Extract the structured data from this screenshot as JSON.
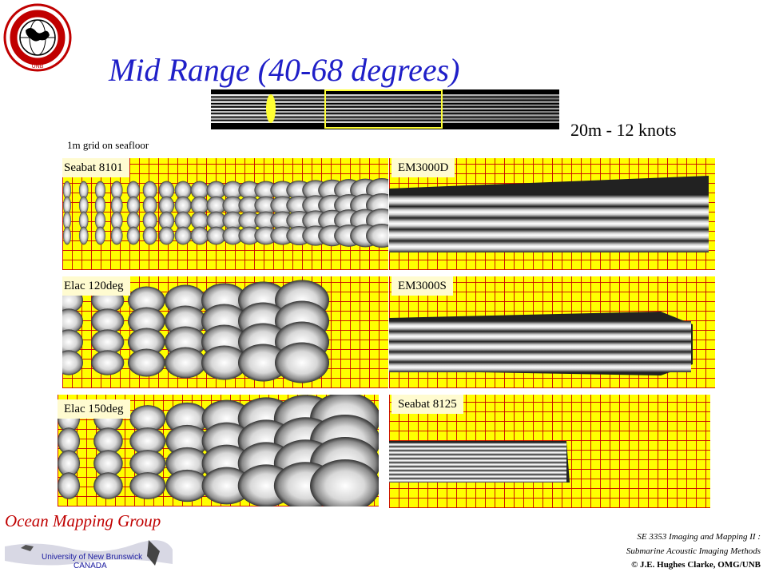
{
  "logo": {
    "text_top": "GEODESY AND GEOMATICS ENGINEERING",
    "text_bottom": "UNB",
    "icon": "globe-seal-icon"
  },
  "title": "Mid Range (40-68 degrees)",
  "overview": {
    "caption": "20m - 12 knots",
    "highlight_color": "#ffff33"
  },
  "grid_note": "1m grid on seafloor",
  "panels": [
    {
      "id": "seabat-8101",
      "label": "Seabat 8101"
    },
    {
      "id": "em3000d",
      "label": "EM3000D"
    },
    {
      "id": "elac-120",
      "label": "Elac 120deg"
    },
    {
      "id": "em3000s",
      "label": "EM3000S"
    },
    {
      "id": "elac-150",
      "label": "Elac 150deg"
    },
    {
      "id": "seabat-8125",
      "label": "Seabat 8125"
    }
  ],
  "colors": {
    "title": "#1f1fc8",
    "grid_background": "#ffff00",
    "grid_lines": "#c80000",
    "label_background": "#fffbd0",
    "omg_text": "#c00000"
  },
  "footer": {
    "group_name": "Ocean Mapping Group",
    "university": "University of New Brunswick",
    "country": "CANADA",
    "course_line1": "SE 3353 Imaging and Mapping II :",
    "course_line2": "Submarine Acoustic Imaging Methods",
    "copyright": "© J.E. Hughes Clarke, OMG/UNB"
  }
}
